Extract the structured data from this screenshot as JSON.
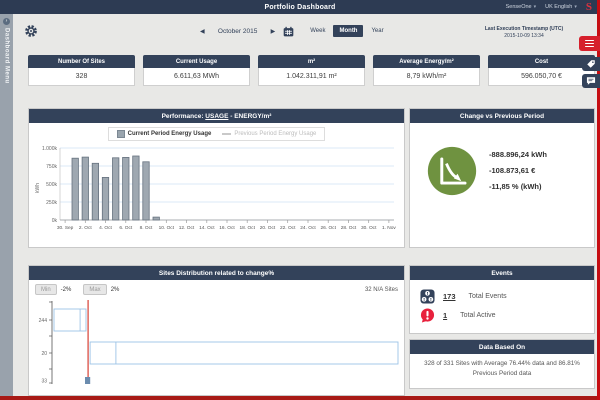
{
  "topbar": {
    "title": "Portfolio Dashboard",
    "tenant": "SenseOne",
    "language": "UK English",
    "logo_letter": "S"
  },
  "sidebar": {
    "label": "Dashboard Menu"
  },
  "toolbar": {
    "prev_arrow": "◀",
    "next_arrow": "▶",
    "period_label": "October 2015",
    "views": [
      {
        "label": "Week",
        "active": false
      },
      {
        "label": "Month",
        "active": true
      },
      {
        "label": "Year",
        "active": false
      }
    ],
    "last_execution_line1": "Last Execution Timestamp (UTC)",
    "last_execution_line2": "2015-10-09 13:34"
  },
  "kpis": [
    {
      "label": "Number Of Sites",
      "value": "328"
    },
    {
      "label": "Current Usage",
      "value": "6.611,63 MWh"
    },
    {
      "label": "m²",
      "value": "1.042.311,91 m²"
    },
    {
      "label": "Average Energy/m²",
      "value": "8,79 kWh/m²"
    },
    {
      "label": "Cost",
      "value": "596.050,70 €"
    }
  ],
  "performance": {
    "title_prefix": "Performance: ",
    "title_link": "USAGE",
    "title_suffix": " - ENERGY/m²",
    "legend": [
      {
        "label": "Current Period Energy Usage",
        "active": true
      },
      {
        "label": "Previous Period Energy Usage",
        "active": false
      }
    ]
  },
  "change_panel": {
    "title": "Change vs Previous Period",
    "values": [
      "-888.896,24 kWh",
      "-108.873,61 €",
      "-11,85 % (kWh)"
    ]
  },
  "distribution": {
    "title": "Sites Distribution related to change%",
    "min_label": "Min",
    "min_value": "-2%",
    "max_label": "Max",
    "max_value": "2%",
    "na_sites": "32 N/A Sites"
  },
  "events": {
    "title": "Events",
    "rows": [
      {
        "count": "173",
        "label": "Total Events"
      },
      {
        "count": "1",
        "label": "Total Active"
      }
    ]
  },
  "data_based_on": {
    "title": "Data Based On",
    "text": "328 of 331 Sites with Average 76.44% data and 86.81% Previous Period data"
  },
  "colors": {
    "navy": "#33425a",
    "topbar_navy": "#2d3b53",
    "accent_red": "#d6202c",
    "green": "#6f9240",
    "bar_fill": "#9fa8b1",
    "bar_stroke": "#66727f",
    "gridline_blue": "#cfe0f4",
    "dist_box_stroke": "#9dc3e6",
    "dist_marker_red": "#dd5a50"
  },
  "chart_data": [
    {
      "type": "bar",
      "title": "Performance: USAGE - ENERGY/m²",
      "ylabel": "kWh",
      "ylim": [
        0,
        1000000
      ],
      "ytick_labels": [
        "0k",
        "250k",
        "500k",
        "750k",
        "1.000k"
      ],
      "x_days_total": 33,
      "xtick_labels": [
        "30. Sep",
        "2. Oct",
        "4. Oct",
        "6. Oct",
        "8. Oct",
        "10. Oct",
        "12. Oct",
        "14. Oct",
        "16. Oct",
        "18. Oct",
        "20. Oct",
        "22. Oct",
        "24. Oct",
        "26. Oct",
        "28. Oct",
        "30. Oct",
        "1. Nov"
      ],
      "xtick_day_step": 2,
      "grid": true,
      "legend_position": "top-center",
      "series": [
        {
          "name": "Current Period Energy Usage",
          "points": [
            {
              "day_index": 1,
              "value": 858000
            },
            {
              "day_index": 2,
              "value": 874000
            },
            {
              "day_index": 3,
              "value": 788000
            },
            {
              "day_index": 4,
              "value": 591000
            },
            {
              "day_index": 5,
              "value": 864000
            },
            {
              "day_index": 6,
              "value": 869000
            },
            {
              "day_index": 7,
              "value": 889000
            },
            {
              "day_index": 8,
              "value": 808000
            },
            {
              "day_index": 9,
              "value": 40000
            }
          ]
        },
        {
          "name": "Previous Period Energy Usage",
          "points": []
        }
      ]
    },
    {
      "type": "bar",
      "orientation": "horizontal",
      "title": "Sites Distribution related to change%",
      "note": "Sites grouped by usage change%; red vertical marker near left; bottom row clipped by panel edge",
      "marker_frac": 0.099,
      "rows": [
        {
          "label": "244",
          "y": 13,
          "h": 22,
          "box": [
            0.0,
            0.093
          ],
          "divider": 0.076,
          "style": "outline"
        },
        {
          "label": "20",
          "y": 46,
          "h": 22,
          "box": [
            0.105,
            1.0
          ],
          "divider": 0.18,
          "style": "outline"
        },
        {
          "label": "33",
          "y": 81,
          "h": 7,
          "box": [
            0.09,
            0.105
          ],
          "divider": null,
          "style": "filled"
        }
      ],
      "min_filter": "-2%",
      "max_filter": "2%",
      "na_sites": 32
    }
  ]
}
